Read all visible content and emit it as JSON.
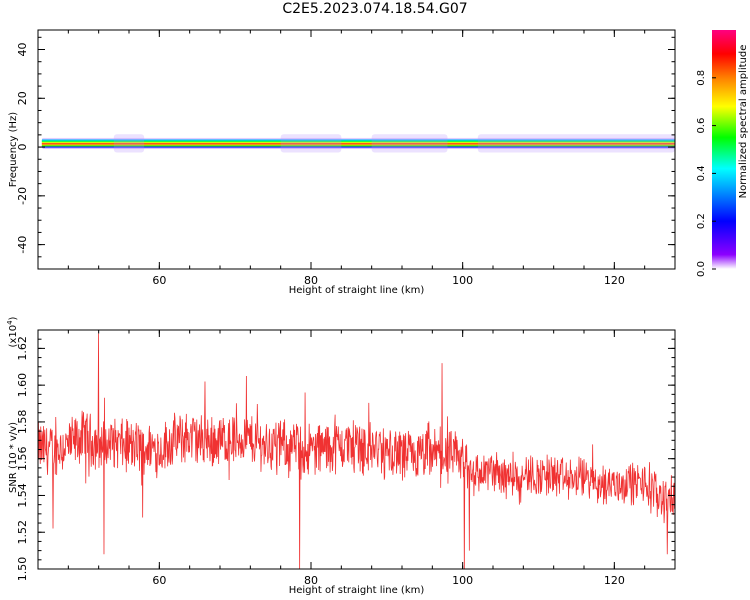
{
  "figure_title": "C2E5.2023.074.18.54.G07",
  "colors": {
    "snr_line": "#f03232",
    "axis": "#000000"
  },
  "chart_data": [
    {
      "type": "heatmap",
      "title": "C2E5.2023.074.18.54.G07",
      "xlabel": "Height of straight line (km)",
      "ylabel": "Frequency (Hz)",
      "xlim": [
        44,
        128
      ],
      "ylim": [
        -50,
        48
      ],
      "x_ticks": [
        60,
        80,
        100,
        120
      ],
      "x_tick_labels": [
        "60",
        "80",
        "100",
        "120"
      ],
      "y_ticks": [
        -40,
        -20,
        0,
        20,
        40
      ],
      "y_tick_labels": [
        "-40",
        "-20",
        "0",
        "20",
        "40"
      ],
      "band": {
        "x_start": 44.5,
        "x_end": 128,
        "center_frequency_hz": 1.5,
        "half_width_hz": 2.5,
        "peak_normalized_amplitude": 1.0
      },
      "colorbar": {
        "label": "Normalized spectral amplitude",
        "range": [
          0,
          1
        ],
        "ticks": [
          0.0,
          0.2,
          0.4,
          0.6,
          0.8
        ],
        "tick_labels": [
          "0.0",
          "0.2",
          "0.4",
          "0.6",
          "0.8"
        ],
        "colormap": [
          "#ffffff",
          "#8c00ff",
          "#0000ff",
          "#00ffff",
          "#00ff00",
          "#ffff00",
          "#ff8000",
          "#ff0000",
          "#ff0080"
        ]
      }
    },
    {
      "type": "line",
      "xlabel": "Height of straight line (km)",
      "ylabel": "SNR (10 * v/v)",
      "y_multiplier_label": "(x10",
      "y_multiplier_exponent": "4",
      "y_multiplier_close": ")",
      "xlim": [
        44,
        128
      ],
      "ylim": [
        1.5,
        1.63
      ],
      "x_ticks": [
        60,
        80,
        100,
        120
      ],
      "x_tick_labels": [
        "60",
        "80",
        "100",
        "120"
      ],
      "y_ticks": [
        1.5,
        1.52,
        1.54,
        1.56,
        1.58,
        1.6,
        1.62
      ],
      "y_tick_labels": [
        "1.50",
        "1.52",
        "1.54",
        "1.56",
        "1.58",
        "1.60",
        "1.62"
      ],
      "series": [
        {
          "x": [
            44,
            46,
            48,
            50,
            52,
            54,
            56,
            58,
            60,
            62,
            64,
            66,
            68,
            70,
            72,
            74,
            76,
            78,
            80,
            82,
            84,
            86,
            88,
            90,
            92,
            94,
            96,
            98,
            100,
            102,
            104,
            106,
            108,
            110,
            112,
            114,
            116,
            118,
            120,
            122,
            124,
            126,
            128
          ],
          "y": [
            1.566,
            1.565,
            1.567,
            1.572,
            1.568,
            1.569,
            1.566,
            1.567,
            1.565,
            1.57,
            1.572,
            1.569,
            1.57,
            1.571,
            1.57,
            1.568,
            1.567,
            1.566,
            1.565,
            1.566,
            1.567,
            1.568,
            1.566,
            1.563,
            1.562,
            1.56,
            1.562,
            1.561,
            1.559,
            1.552,
            1.553,
            1.551,
            1.552,
            1.55,
            1.551,
            1.548,
            1.55,
            1.547,
            1.546,
            1.547,
            1.546,
            1.54,
            1.538
          ],
          "spikes": [
            {
              "x": 52.0,
              "y": 1.628
            },
            {
              "x": 52.7,
              "y": 1.508
            },
            {
              "x": 78.5,
              "y": 1.498
            },
            {
              "x": 79.2,
              "y": 1.596
            },
            {
              "x": 97.3,
              "y": 1.612
            },
            {
              "x": 100.2,
              "y": 1.497
            },
            {
              "x": 100.9,
              "y": 1.51
            },
            {
              "x": 66.0,
              "y": 1.602
            },
            {
              "x": 71.5,
              "y": 1.605
            },
            {
              "x": 57.8,
              "y": 1.528
            },
            {
              "x": 46.0,
              "y": 1.522
            },
            {
              "x": 127.0,
              "y": 1.508
            }
          ]
        }
      ]
    }
  ]
}
